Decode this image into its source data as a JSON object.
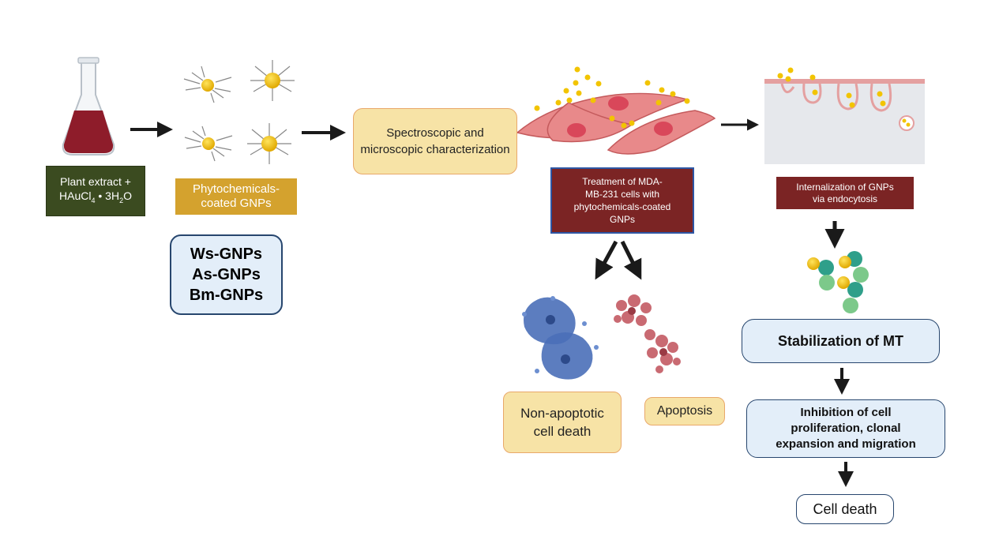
{
  "plant_extract": {
    "line1": "Plant extract +",
    "line2_prefix": "HAuCl",
    "line2_sub": "4",
    "line2_mid": " • 3H",
    "line2_sub2": "2",
    "line2_end": "O"
  },
  "phyto_box": {
    "line1": "Phytochemicals-",
    "line2": "coated GNPs"
  },
  "variants": {
    "items": [
      "Ws-GNPs",
      "As-GNPs",
      "Bm-GNPs"
    ]
  },
  "characterization": {
    "line1": "Spectroscopic and",
    "line2": "microscopic characterization"
  },
  "treatment": {
    "line1": "Treatment of MDA-",
    "line2": "MB-231 cells with",
    "line3": "phytochemicals-coated",
    "line4": "GNPs"
  },
  "internalization": {
    "line1": "Internalization of GNPs",
    "line2": "via endocytosis"
  },
  "non_apoptotic": {
    "line1": "Non-apoptotic",
    "line2": "cell death"
  },
  "apoptosis": {
    "label": "Apoptosis"
  },
  "stabilization": {
    "label": "Stabilization of MT"
  },
  "inhibition": {
    "line1": "Inhibition of cell",
    "line2": "proliferation, clonal",
    "line3": "expansion and migration"
  },
  "cell_death": {
    "label": "Cell death"
  },
  "colors": {
    "gold": "#f2c400",
    "flask_liquid": "#8e1c2a",
    "cell_pink": "#e8898a",
    "membrane": "#e4a0a0",
    "nucleus_red": "#d9475a",
    "blue_cell": "#4a6fb8",
    "red_cell": "#c96a72",
    "mt_green": "#7cc98a",
    "mt_teal": "#2f9f8a",
    "arrow": "#1a1a1a"
  }
}
